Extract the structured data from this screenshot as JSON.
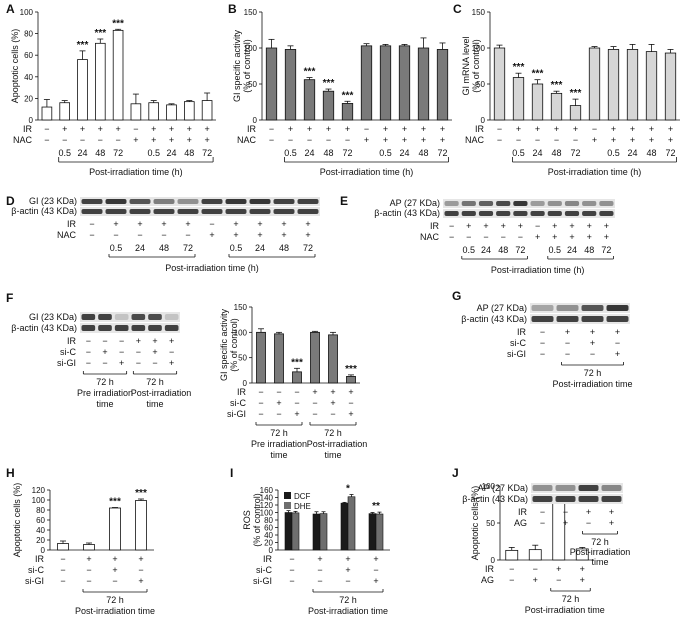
{
  "panel_letters": [
    "A",
    "B",
    "C",
    "D",
    "E",
    "F",
    "G",
    "H",
    "I",
    "J"
  ],
  "common": {
    "post_irr": "Post-irradiation time (h)",
    "times": [
      "0.5",
      "24",
      "48",
      "72"
    ],
    "sig": "***",
    "sig2": "**",
    "sig1": "*",
    "h72": "72 h",
    "post_irr_time": "Post-irradiation time",
    "pre_irr_time": "Pre irradiation time",
    "post_irr_time2": "Post-irradiation time",
    "pre_irr_time2": "Pre irradiation time"
  },
  "colors": {
    "open": "#ffffff",
    "dark": "#7a7a7a",
    "light": "#d6d6d6",
    "dcf": "#1a1a1a",
    "dhe": "#6e6e6e"
  },
  "chart_data": [
    {
      "panel": "A",
      "type": "bar",
      "ylabel": "Apoptotic cells (%)",
      "ylim": [
        0,
        100
      ],
      "yticks": [
        0,
        20,
        40,
        60,
        80,
        100
      ],
      "rows": [
        {
          "label": "IR",
          "signs": [
            "−",
            "+",
            "+",
            "+",
            "+",
            "−",
            "+",
            "+",
            "+",
            "+"
          ]
        },
        {
          "label": "NAC",
          "signs": [
            "−",
            "−",
            "−",
            "−",
            "−",
            "+",
            "+",
            "+",
            "+",
            "+"
          ]
        }
      ],
      "time_labels": [
        "0.5",
        "24",
        "48",
        "72",
        "0.5",
        "24",
        "48",
        "72"
      ],
      "values": [
        12,
        16,
        56,
        71,
        83,
        15,
        16,
        14,
        17,
        18
      ],
      "errors": [
        7,
        2,
        8,
        4,
        1,
        9,
        2,
        1,
        1,
        7
      ],
      "sig": [
        "",
        "",
        "***",
        "***",
        "***",
        "",
        "",
        "",
        "",
        ""
      ],
      "bar_color": "open",
      "xlabel": "Post-irradiation time (h)"
    },
    {
      "panel": "B",
      "type": "bar",
      "ylabel": "GI specific activity (% of control)",
      "ylim": [
        0,
        150
      ],
      "yticks": [
        0,
        50,
        100,
        150
      ],
      "rows": [
        {
          "label": "IR",
          "signs": [
            "−",
            "+",
            "+",
            "+",
            "+",
            "−",
            "+",
            "+",
            "+",
            "+"
          ]
        },
        {
          "label": "NAC",
          "signs": [
            "−",
            "−",
            "−",
            "−",
            "−",
            "+",
            "+",
            "+",
            "+",
            "+"
          ]
        }
      ],
      "time_labels": [
        "0.5",
        "24",
        "48",
        "72",
        "0.5",
        "24",
        "48",
        "72"
      ],
      "values": [
        100,
        98,
        56,
        40,
        23,
        103,
        103,
        103,
        100,
        98
      ],
      "errors": [
        12,
        5,
        3,
        3,
        3,
        3,
        2,
        2,
        14,
        9
      ],
      "sig": [
        "",
        "",
        "***",
        "***",
        "***",
        "",
        "",
        "",
        "",
        ""
      ],
      "bar_color": "dark",
      "xlabel": "Post-irradiation time (h)"
    },
    {
      "panel": "C",
      "type": "bar",
      "ylabel": "GI mRNA level (% of control)",
      "ylim": [
        0,
        150
      ],
      "yticks": [
        0,
        50,
        100,
        150
      ],
      "rows": [
        {
          "label": "IR",
          "signs": [
            "−",
            "+",
            "+",
            "+",
            "+",
            "−",
            "+",
            "+",
            "+",
            "+"
          ]
        },
        {
          "label": "NAC",
          "signs": [
            "−",
            "−",
            "−",
            "−",
            "−",
            "+",
            "+",
            "+",
            "+",
            "+"
          ]
        }
      ],
      "time_labels": [
        "0.5",
        "24",
        "48",
        "72",
        "0.5",
        "24",
        "48",
        "72"
      ],
      "values": [
        100,
        59,
        50,
        37,
        20,
        100,
        98,
        98,
        95,
        93
      ],
      "errors": [
        4,
        6,
        6,
        3,
        9,
        2,
        4,
        7,
        10,
        5
      ],
      "sig": [
        "",
        "***",
        "***",
        "***",
        "***",
        "",
        "",
        "",
        "",
        ""
      ],
      "bar_color": "light",
      "xlabel": "Post-irradiation time (h)"
    },
    {
      "panel": "F",
      "type": "bar",
      "ylabel": "GI specific activity (% of control)",
      "ylim": [
        0,
        150
      ],
      "yticks": [
        0,
        50,
        100,
        150
      ],
      "rows": [
        {
          "label": "IR",
          "signs": [
            "−",
            "−",
            "−",
            "+",
            "+",
            "+"
          ]
        },
        {
          "label": "si-C",
          "signs": [
            "−",
            "+",
            "−",
            "−",
            "+",
            "−"
          ]
        },
        {
          "label": "si-GI",
          "signs": [
            "−",
            "−",
            "+",
            "−",
            "−",
            "+"
          ]
        }
      ],
      "values": [
        100,
        97,
        22,
        100,
        95,
        13
      ],
      "errors": [
        7,
        3,
        7,
        2,
        5,
        3
      ],
      "sig": [
        "",
        "",
        "***",
        "",
        "",
        "***"
      ],
      "bar_color": "dark",
      "groups": [
        "72 h Pre irradiation time",
        "72 h Post-irradiation time"
      ]
    },
    {
      "panel": "H",
      "type": "bar",
      "ylabel": "Apoptotic cells (%)",
      "ylim": [
        0,
        120
      ],
      "yticks": [
        0,
        20,
        40,
        60,
        80,
        100,
        120
      ],
      "rows": [
        {
          "label": "IR",
          "signs": [
            "−",
            "+",
            "+",
            "+"
          ]
        },
        {
          "label": "si-C",
          "signs": [
            "−",
            "−",
            "+",
            "−"
          ]
        },
        {
          "label": "si-GI",
          "signs": [
            "−",
            "−",
            "−",
            "+"
          ]
        }
      ],
      "values": [
        13,
        11,
        84,
        99
      ],
      "errors": [
        5,
        3,
        1,
        3
      ],
      "sig": [
        "",
        "",
        "***",
        "***"
      ],
      "bar_color": "open",
      "group": "72 h Post-irradiation time"
    },
    {
      "panel": "I",
      "type": "bar",
      "ylabel": "ROS (% of control)",
      "ylim": [
        0,
        160
      ],
      "yticks": [
        0,
        20,
        40,
        60,
        80,
        100,
        120,
        140,
        160
      ],
      "legend": [
        "DCF",
        "DHE"
      ],
      "legend_position": "top-left",
      "rows": [
        {
          "label": "IR",
          "signs": [
            "−",
            "+",
            "+",
            "+"
          ]
        },
        {
          "label": "si-C",
          "signs": [
            "−",
            "−",
            "+",
            "−"
          ]
        },
        {
          "label": "si-GI",
          "signs": [
            "−",
            "−",
            "−",
            "+"
          ]
        }
      ],
      "series": [
        {
          "name": "DCF",
          "values": [
            100,
            96,
            125,
            97
          ],
          "errors": [
            5,
            6,
            2,
            3
          ]
        },
        {
          "name": "DHE",
          "values": [
            99,
            97,
            142,
            96
          ],
          "errors": [
            4,
            5,
            6,
            5
          ]
        }
      ],
      "sig": [
        "",
        "",
        "*",
        "**"
      ],
      "group": "72 h Post-irradiation time"
    },
    {
      "panel": "J",
      "type": "bar",
      "ylabel": "Apoptotic cells (%)",
      "ylim": [
        0,
        100
      ],
      "yticks": [
        0,
        50,
        100
      ],
      "rows": [
        {
          "label": "IR",
          "signs": [
            "−",
            "−",
            "+",
            "+"
          ]
        },
        {
          "label": "AG",
          "signs": [
            "−",
            "+",
            "−",
            "+"
          ]
        }
      ],
      "values": [
        13,
        14,
        83,
        15
      ],
      "errors": [
        4,
        6,
        1,
        2
      ],
      "sig": [
        "",
        "",
        "***",
        ""
      ],
      "bar_color": "open",
      "group": "72 h Post-irradiation time"
    }
  ],
  "blots": {
    "D": {
      "bands": [
        "GI (23 KDa)",
        "β-actin (43 KDa)"
      ],
      "rows": [
        {
          "label": "IR",
          "signs": [
            "−",
            "+",
            "+",
            "+",
            "+",
            "−",
            "+",
            "+",
            "+",
            "+"
          ]
        },
        {
          "label": "NAC",
          "signs": [
            "−",
            "−",
            "−",
            "−",
            "−",
            "+",
            "+",
            "+",
            "+",
            "+"
          ]
        }
      ],
      "intensity": [
        [
          0.85,
          0.9,
          0.75,
          0.55,
          0.45,
          0.85,
          0.9,
          0.9,
          0.85,
          0.85
        ],
        [
          0.85,
          0.85,
          0.85,
          0.85,
          0.85,
          0.85,
          0.85,
          0.85,
          0.85,
          0.85
        ]
      ],
      "time_labels": [
        "0.5",
        "24",
        "48",
        "72",
        "0.5",
        "24",
        "48",
        "72"
      ]
    },
    "E": {
      "bands": [
        "AP (27 KDa)",
        "β-actin (43 KDa)"
      ],
      "rows": [
        {
          "label": "IR",
          "signs": [
            "−",
            "+",
            "+",
            "+",
            "+",
            "−",
            "+",
            "+",
            "+",
            "+"
          ]
        },
        {
          "label": "NAC",
          "signs": [
            "−",
            "−",
            "−",
            "−",
            "−",
            "+",
            "+",
            "+",
            "+",
            "+"
          ]
        }
      ],
      "intensity": [
        [
          0.4,
          0.6,
          0.7,
          0.8,
          0.9,
          0.4,
          0.45,
          0.5,
          0.45,
          0.45
        ],
        [
          0.85,
          0.85,
          0.85,
          0.85,
          0.85,
          0.85,
          0.85,
          0.85,
          0.85,
          0.85
        ]
      ],
      "time_labels": [
        "0.5",
        "24",
        "48",
        "72",
        "0.5",
        "24",
        "48",
        "72"
      ]
    },
    "F": {
      "bands": [
        "GI (23 KDa)",
        "β-actin (43 KDa)"
      ],
      "rows": [
        {
          "label": "IR",
          "signs": [
            "−",
            "−",
            "−",
            "+",
            "+",
            "+"
          ]
        },
        {
          "label": "si-C",
          "signs": [
            "−",
            "+",
            "−",
            "−",
            "+",
            "−"
          ]
        },
        {
          "label": "si-GI",
          "signs": [
            "−",
            "−",
            "+",
            "−",
            "−",
            "+"
          ]
        }
      ],
      "intensity": [
        [
          0.85,
          0.85,
          0.2,
          0.8,
          0.8,
          0.2
        ],
        [
          0.85,
          0.85,
          0.85,
          0.85,
          0.85,
          0.85
        ]
      ],
      "groups": [
        "72 h Pre irradiation time",
        "72 h Post-irradiation time"
      ]
    },
    "G": {
      "bands": [
        "AP (27 KDa)",
        "β-actin (43 KDa)"
      ],
      "rows": [
        {
          "label": "IR",
          "signs": [
            "−",
            "+",
            "+",
            "+"
          ]
        },
        {
          "label": "si-C",
          "signs": [
            "−",
            "−",
            "+",
            "−"
          ]
        },
        {
          "label": "si-GI",
          "signs": [
            "−",
            "−",
            "−",
            "+"
          ]
        }
      ],
      "intensity": [
        [
          0.35,
          0.45,
          0.75,
          0.9
        ],
        [
          0.85,
          0.85,
          0.85,
          0.85
        ]
      ],
      "group": "72 h Post-irradiation time"
    },
    "J": {
      "bands": [
        "AP (27 KDa)",
        "β-actin (43 KDa)"
      ],
      "rows": [
        {
          "label": "IR",
          "signs": [
            "−",
            "−",
            "+",
            "+"
          ]
        },
        {
          "label": "AG",
          "signs": [
            "−",
            "+",
            "−",
            "+"
          ]
        }
      ],
      "intensity": [
        [
          0.45,
          0.45,
          0.85,
          0.5
        ],
        [
          0.85,
          0.85,
          0.85,
          0.85
        ]
      ],
      "group": "72 h Post-irradiation time"
    }
  }
}
